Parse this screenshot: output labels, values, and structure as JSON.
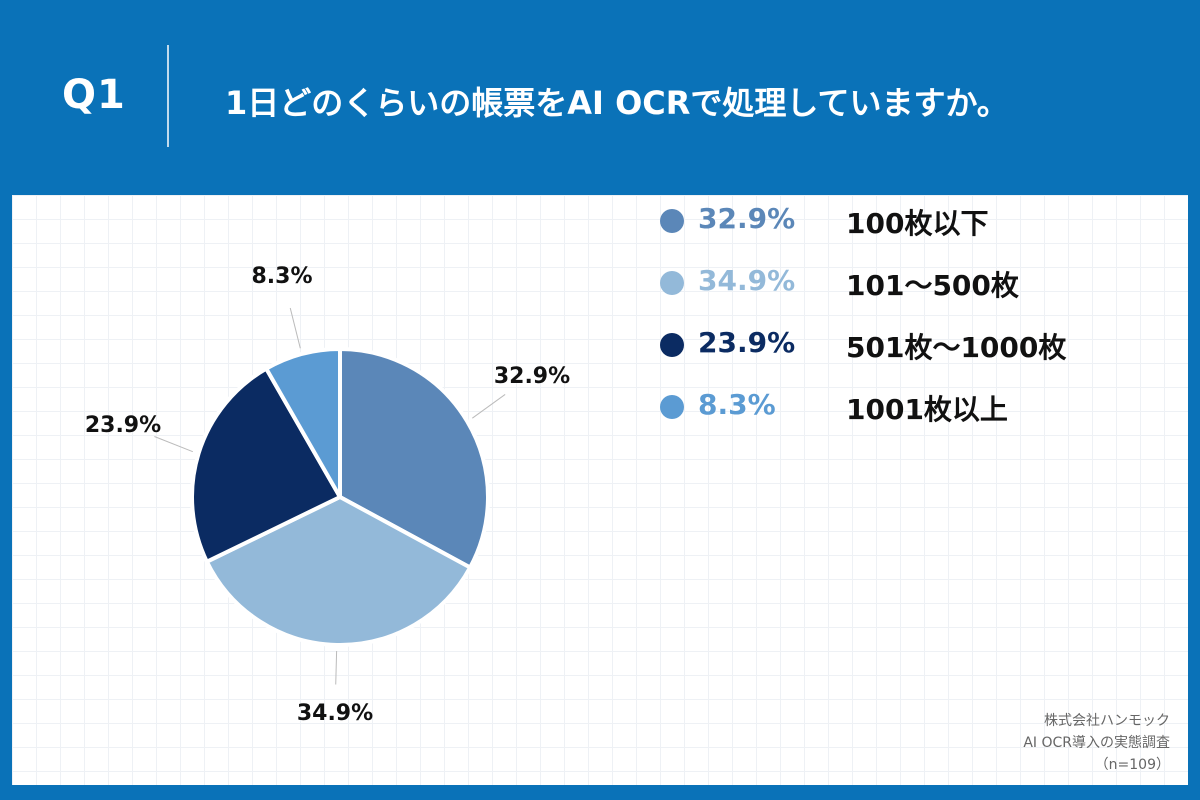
{
  "header": {
    "q_label": "Q1",
    "title": "1日どのくらいの帳票をAI OCRで処理していますか。"
  },
  "chart_data": {
    "type": "pie",
    "categories": [
      "100枚以下",
      "101〜500枚",
      "501枚〜1000枚",
      "1001枚以上"
    ],
    "values": [
      32.9,
      34.9,
      23.9,
      8.3
    ],
    "value_labels": [
      "32.9%",
      "34.9%",
      "23.9%",
      "8.3%"
    ],
    "colors": [
      "#5b87b8",
      "#93b9d9",
      "#0b2b62",
      "#5b9bd3"
    ],
    "start": "12 o'clock",
    "direction": "clockwise",
    "legend_position": "right"
  },
  "legend": {
    "items": [
      {
        "pct": "32.9%",
        "label": "100枚以下",
        "color": "#5b87b8"
      },
      {
        "pct": "34.9%",
        "label": "101〜500枚",
        "color": "#93b9d9"
      },
      {
        "pct": "23.9%",
        "label": "501枚〜1000枚",
        "color": "#0b2b62"
      },
      {
        "pct": "8.3%",
        "label": "1001枚以上",
        "color": "#5b9bd3"
      }
    ]
  },
  "source": {
    "line1": "株式会社ハンモック",
    "line2": "AI OCR導入の実態調査",
    "line3": "（n=109）"
  }
}
